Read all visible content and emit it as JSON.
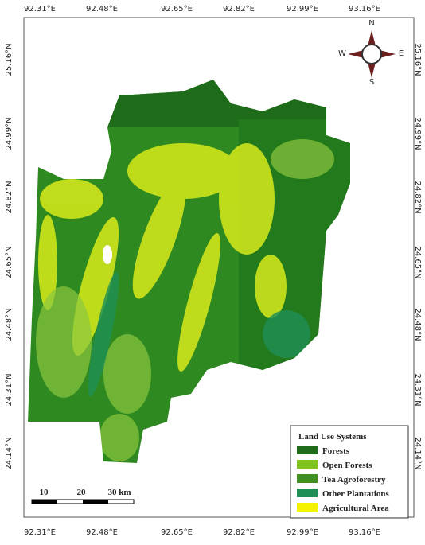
{
  "map": {
    "longitudes": [
      "92.31°E",
      "92.48°E",
      "92.65°E",
      "92.82°E",
      "92.99°E",
      "93.16°E"
    ],
    "latitudes": [
      "25.16°N",
      "24.99°N",
      "24.82°N",
      "24.65°N",
      "24.48°N",
      "24.31°N",
      "24.14°N"
    ],
    "compass": {
      "north": "N",
      "east": "E",
      "south": "S",
      "west": "W"
    },
    "scale_bar": [
      "10",
      "20",
      "30 km"
    ],
    "legend": {
      "title": "Land Use Systems",
      "entries": [
        {
          "label": "Forests",
          "color": "#1e6b1a"
        },
        {
          "label": "Open Forests",
          "color": "#7fc31c"
        },
        {
          "label": "Tea Agroforestry",
          "color": "#3f8f22"
        },
        {
          "label": "Other Plantations",
          "color": "#1f8f55"
        },
        {
          "label": "Agricultural Area",
          "color": "#f4f400"
        }
      ]
    }
  }
}
